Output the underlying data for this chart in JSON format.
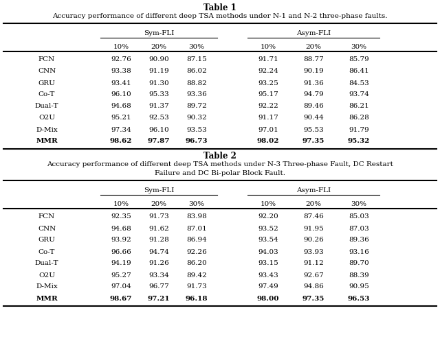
{
  "table1_title": "Table 1",
  "table1_subtitle": "Accuracy performance of different deep TSA methods under N-1 and N-2 three-phase faults.",
  "table2_title": "Table 2",
  "table2_subtitle_line1": "Accuracy performance of different deep TSA methods under N-3 Three-phase Fault, DC Restart",
  "table2_subtitle_line2": "Failure and DC Bi-polar Block Fault.",
  "col_groups": [
    "Sym-FLI",
    "Asym-FLI"
  ],
  "sub_cols": [
    "10%",
    "20%",
    "30%"
  ],
  "methods": [
    "FCN",
    "CNN",
    "GRU",
    "Co-T",
    "Dual-T",
    "O2U",
    "D-Mix",
    "MMR"
  ],
  "table1_data": [
    [
      92.76,
      90.9,
      87.15,
      91.71,
      88.77,
      85.79
    ],
    [
      93.38,
      91.19,
      86.02,
      92.24,
      90.19,
      86.41
    ],
    [
      93.41,
      91.3,
      88.82,
      93.25,
      91.36,
      84.53
    ],
    [
      96.1,
      95.33,
      93.36,
      95.17,
      94.79,
      93.74
    ],
    [
      94.68,
      91.37,
      89.72,
      92.22,
      89.46,
      86.21
    ],
    [
      95.21,
      92.53,
      90.32,
      91.17,
      90.44,
      86.28
    ],
    [
      97.34,
      96.1,
      93.53,
      97.01,
      95.53,
      91.79
    ],
    [
      98.62,
      97.87,
      96.73,
      98.02,
      97.35,
      95.32
    ]
  ],
  "table2_data": [
    [
      92.35,
      91.73,
      83.98,
      92.2,
      87.46,
      85.03
    ],
    [
      94.68,
      91.62,
      87.01,
      93.52,
      91.95,
      87.03
    ],
    [
      93.92,
      91.28,
      86.94,
      93.54,
      90.26,
      89.36
    ],
    [
      96.66,
      94.74,
      92.26,
      94.03,
      93.93,
      93.16
    ],
    [
      94.19,
      91.26,
      86.2,
      93.15,
      91.12,
      89.7
    ],
    [
      95.27,
      93.34,
      89.42,
      93.43,
      92.67,
      88.39
    ],
    [
      97.04,
      96.77,
      91.73,
      97.49,
      94.86,
      90.95
    ],
    [
      98.67,
      97.21,
      96.18,
      98.0,
      97.35,
      96.53
    ]
  ],
  "bold_row": 7,
  "bg_color": "#ffffff",
  "font_family": "DejaVu Serif",
  "font_size": 7.5,
  "title_fontsize": 8.5,
  "subtitle_fontsize": 7.5
}
